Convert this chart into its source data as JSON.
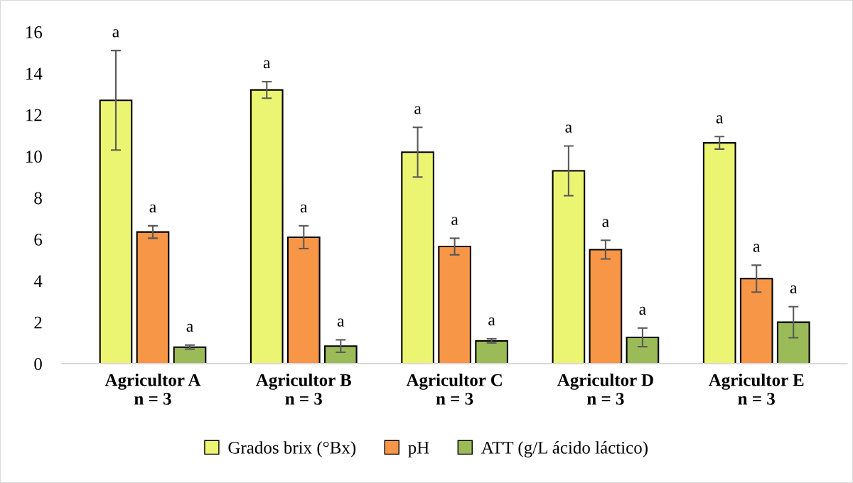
{
  "chart_data": {
    "type": "bar",
    "categories": [
      "Agricultor A\nn = 3",
      "Agricultor B\nn = 3",
      "Agricultor C\nn = 3",
      "Agricultor D\nn = 3",
      "Agricultor E\nn = 3"
    ],
    "series": [
      {
        "name": "Grados brix (°Bx)",
        "color": "#ebf572",
        "values": [
          12.7,
          13.2,
          10.2,
          9.3,
          10.65
        ],
        "errors": [
          2.4,
          0.4,
          1.2,
          1.2,
          0.3
        ]
      },
      {
        "name": "pH",
        "color": "#f79646",
        "values": [
          6.35,
          6.1,
          5.65,
          5.5,
          4.1
        ],
        "errors": [
          0.3,
          0.55,
          0.4,
          0.45,
          0.65
        ]
      },
      {
        "name": "ATT (g/L ácido láctico)",
        "color": "#9bbb59",
        "values": [
          0.8,
          0.85,
          1.1,
          1.27,
          2.0
        ],
        "errors": [
          0.1,
          0.3,
          0.1,
          0.45,
          0.75
        ]
      }
    ],
    "annotations": [
      "a",
      "a",
      "a",
      "a",
      "a",
      "a",
      "a",
      "a",
      "a",
      "a",
      "a",
      "a",
      "a",
      "a",
      "a"
    ],
    "ylim": [
      0,
      16
    ],
    "yticks": [
      0,
      2,
      4,
      6,
      8,
      10,
      12,
      14,
      16
    ],
    "grid": false,
    "legend": "bottom"
  }
}
